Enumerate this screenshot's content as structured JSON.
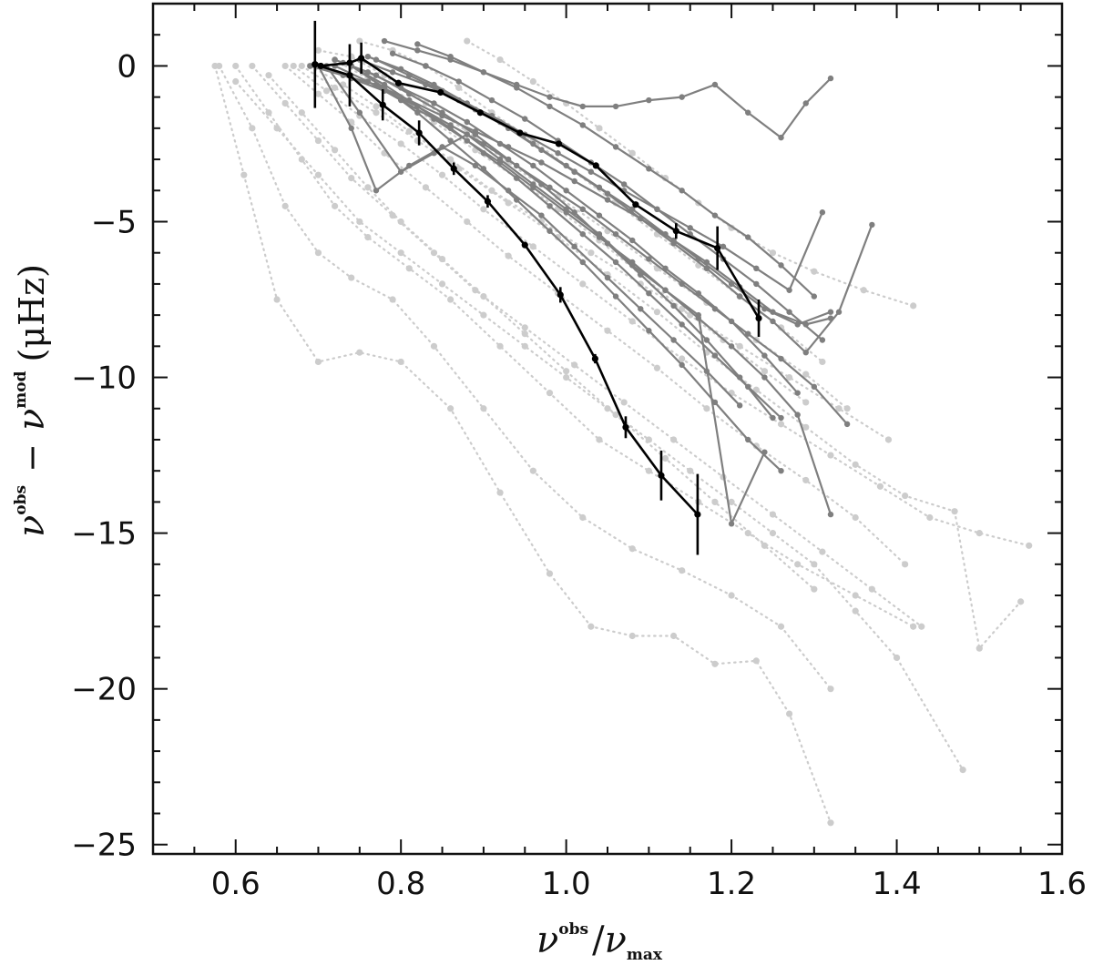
{
  "chart_data": {
    "type": "line",
    "xlabel": {
      "main": "ν",
      "sup": "obs",
      "sep": "/",
      "main2": "ν",
      "sub2": "max"
    },
    "ylabel": {
      "main": "ν",
      "sup1": "obs",
      "minus": "−",
      "main2": "ν",
      "sup2": "mod",
      "unit": "(μHz)"
    },
    "xlim": [
      0.5,
      1.6
    ],
    "ylim": [
      -25.3,
      2
    ],
    "x_ticks": [
      0.6,
      0.8,
      1.0,
      1.2,
      1.4,
      1.6
    ],
    "x_tick_labels": [
      "0.6",
      "0.8",
      "1.0",
      "1.2",
      "1.4",
      "1.6"
    ],
    "y_ticks": [
      0,
      -5,
      -10,
      -15,
      -20,
      -25
    ],
    "y_tick_labels": [
      "0",
      "−5",
      "−10",
      "−15",
      "−20",
      "−25"
    ],
    "grid": false,
    "legend": "none",
    "colors": {
      "highlight": "#000000",
      "sample": "#7f7f7f",
      "background": "#cccccc"
    },
    "background_series": [
      {
        "x": [
          0.575,
          0.61,
          0.65,
          0.7,
          0.75,
          0.8,
          0.86,
          0.92,
          0.98,
          1.03,
          1.08,
          1.13,
          1.18,
          1.23,
          1.27,
          1.32
        ],
        "y": [
          0,
          -3.5,
          -7.5,
          -9.5,
          -9.2,
          -9.5,
          -11,
          -13.7,
          -16.3,
          -18,
          -18.3,
          -18.3,
          -19.2,
          -19.1,
          -20.8,
          -24.3
        ]
      },
      {
        "x": [
          0.58,
          0.62,
          0.66,
          0.7,
          0.74,
          0.79,
          0.84,
          0.9,
          0.96,
          1.02,
          1.08,
          1.14,
          1.2,
          1.26,
          1.32
        ],
        "y": [
          0,
          -2,
          -4.5,
          -6,
          -6.8,
          -7.5,
          -9,
          -11,
          -13,
          -14.5,
          -15.5,
          -16.2,
          -17,
          -18,
          -20
        ]
      },
      {
        "x": [
          0.6,
          0.64,
          0.68,
          0.72,
          0.76,
          0.81,
          0.86,
          0.92,
          0.98,
          1.04,
          1.1,
          1.16,
          1.22,
          1.28,
          1.35,
          1.42
        ],
        "y": [
          0,
          -1.5,
          -3,
          -4.5,
          -5.5,
          -6.5,
          -7.5,
          -9,
          -10.5,
          -12,
          -13,
          -14,
          -15,
          -16,
          -17,
          -18
        ]
      },
      {
        "x": [
          0.67,
          0.71,
          0.75,
          0.8,
          0.85,
          0.9,
          0.96,
          1.02,
          1.08,
          1.14,
          1.2,
          1.26,
          1.32,
          1.38,
          1.44,
          1.5,
          1.56
        ],
        "y": [
          0,
          -0.8,
          -1.6,
          -2.5,
          -3.5,
          -4.6,
          -5.8,
          -7,
          -8.2,
          -9.4,
          -10.5,
          -11.5,
          -12.5,
          -13.5,
          -14.5,
          -15,
          -15.4
        ]
      },
      {
        "x": [
          0.68,
          0.72,
          0.77,
          0.82,
          0.87,
          0.93,
          0.99,
          1.05,
          1.11,
          1.17,
          1.23,
          1.29,
          1.35,
          1.41,
          1.47,
          1.5,
          1.55
        ],
        "y": [
          0,
          -0.7,
          -1.5,
          -2.4,
          -3.3,
          -4.4,
          -5.5,
          -6.7,
          -7.9,
          -9.2,
          -10.4,
          -11.6,
          -12.8,
          -13.8,
          -14.3,
          -18.7,
          -17.2
        ]
      },
      {
        "x": [
          0.6,
          0.65,
          0.7,
          0.75,
          0.8,
          0.85,
          0.9,
          0.95,
          1.0,
          1.05,
          1.1,
          1.15,
          1.2,
          1.25,
          1.3,
          1.35,
          1.4,
          1.48
        ],
        "y": [
          -0.5,
          -2,
          -3.5,
          -5,
          -6,
          -7,
          -8,
          -9,
          -10,
          -11,
          -12,
          -13,
          -14,
          -15,
          -16,
          -17.5,
          -19,
          -22.6
        ]
      },
      {
        "x": [
          0.75,
          0.79,
          0.83,
          0.87,
          0.91,
          0.96,
          1.01,
          1.06,
          1.11,
          1.16,
          1.21,
          1.26,
          1.31
        ],
        "y": [
          0.8,
          0.5,
          0,
          -0.7,
          -1.5,
          -2.4,
          -3.4,
          -4.4,
          -5.4,
          -6.4,
          -7.4,
          -8.4,
          -9.5
        ]
      },
      {
        "x": [
          0.7,
          0.74,
          0.78,
          0.83,
          0.88,
          0.93,
          0.99,
          1.05,
          1.11,
          1.17,
          1.23,
          1.29,
          1.34
        ],
        "y": [
          0.5,
          0.3,
          -0.3,
          -1.2,
          -2.1,
          -3.1,
          -4.2,
          -5.3,
          -6.5,
          -7.6,
          -8.8,
          -9.9,
          -11
        ]
      },
      {
        "x": [
          0.69,
          0.73,
          0.77,
          0.81,
          0.86,
          0.91,
          0.97,
          1.03,
          1.09,
          1.15,
          1.21,
          1.27,
          1.33,
          1.39
        ],
        "y": [
          0,
          -0.6,
          -1.3,
          -2.1,
          -3,
          -4,
          -5,
          -6,
          -7,
          -8,
          -9,
          -10,
          -11,
          -12
        ]
      },
      {
        "x": [
          0.66,
          0.7,
          0.74,
          0.78,
          0.83,
          0.88,
          0.93,
          0.99,
          1.05,
          1.11,
          1.17,
          1.23,
          1.29,
          1.35,
          1.41
        ],
        "y": [
          0,
          -0.9,
          -1.8,
          -2.8,
          -3.9,
          -5,
          -6.1,
          -7.3,
          -8.5,
          -9.7,
          -11,
          -12.2,
          -13.3,
          -14.5,
          -16
        ]
      },
      {
        "x": [
          0.62,
          0.66,
          0.7,
          0.74,
          0.79,
          0.84,
          0.89,
          0.95,
          1.01,
          1.07,
          1.13,
          1.19,
          1.25,
          1.31,
          1.37,
          1.43
        ],
        "y": [
          0,
          -1.2,
          -2.4,
          -3.6,
          -4.8,
          -6,
          -7.2,
          -8.4,
          -9.6,
          -10.8,
          -12,
          -13.2,
          -14.4,
          -15.6,
          -16.8,
          -18
        ]
      },
      {
        "x": [
          0.88,
          0.92,
          0.96,
          1.0,
          1.04,
          1.08,
          1.12,
          1.16,
          1.2,
          1.25,
          1.3,
          1.36,
          1.42
        ],
        "y": [
          0.8,
          0.2,
          -0.5,
          -1.2,
          -2,
          -2.8,
          -3.6,
          -4.4,
          -5.2,
          -6,
          -6.6,
          -7.2,
          -7.7
        ]
      },
      {
        "x": [
          0.72,
          0.76,
          0.8,
          0.84,
          0.89,
          0.94,
          0.99,
          1.04,
          1.09,
          1.14,
          1.19,
          1.24,
          1.29
        ],
        "y": [
          0.2,
          -0.4,
          -1,
          -1.8,
          -2.7,
          -3.6,
          -4.6,
          -5.6,
          -6.7,
          -7.8,
          -8.8,
          -9.8,
          -10.8
        ]
      },
      {
        "x": [
          0.64,
          0.68,
          0.72,
          0.76,
          0.8,
          0.85,
          0.9,
          0.95,
          1.0,
          1.06,
          1.12,
          1.18,
          1.24,
          1.3
        ],
        "y": [
          -0.3,
          -1.5,
          -2.7,
          -3.9,
          -5,
          -6.2,
          -7.4,
          -8.6,
          -9.8,
          -11.2,
          -12.6,
          -14,
          -15.4,
          -16.8
        ]
      }
    ],
    "sample_series": [
      {
        "x": [
          0.69,
          0.73,
          0.77,
          0.81,
          0.85,
          0.89,
          0.93,
          0.97,
          1.01,
          1.05,
          1.09,
          1.13,
          1.17,
          1.21,
          1.25,
          1.29,
          1.32
        ],
        "y": [
          0,
          -0.3,
          -0.6,
          -1.1,
          -1.6,
          -2.1,
          -2.6,
          -3.1,
          -3.7,
          -4.3,
          -4.9,
          -5.6,
          -6.3,
          -7.1,
          -7.9,
          -8.3,
          -8.1
        ]
      },
      {
        "x": [
          0.7,
          0.74,
          0.78,
          0.82,
          0.86,
          0.9,
          0.94,
          0.98,
          1.02,
          1.06,
          1.1,
          1.14,
          1.18,
          1.22,
          1.26,
          1.3,
          1.34
        ],
        "y": [
          0,
          -0.4,
          -0.8,
          -1.3,
          -1.9,
          -2.5,
          -3.2,
          -3.9,
          -4.6,
          -5.4,
          -6.2,
          -7,
          -7.8,
          -8.6,
          -9.4,
          -10.3,
          -11.5
        ]
      },
      {
        "x": [
          0.72,
          0.76,
          0.8,
          0.84,
          0.88,
          0.92,
          0.96,
          1.0,
          1.04,
          1.08,
          1.12,
          1.16,
          1.2,
          1.24,
          1.28,
          1.32
        ],
        "y": [
          0,
          -0.5,
          -1.1,
          -1.7,
          -2.4,
          -3.1,
          -3.9,
          -4.7,
          -5.5,
          -6.3,
          -7.2,
          -8.1,
          -9,
          -10,
          -11.2,
          -14.4
        ]
      },
      {
        "x": [
          0.75,
          0.79,
          0.83,
          0.87,
          0.91,
          0.95,
          0.99,
          1.03,
          1.07,
          1.11,
          1.15,
          1.19,
          1.23,
          1.27,
          1.31
        ],
        "y": [
          0.2,
          -0.2,
          -0.6,
          -1.1,
          -1.6,
          -2.2,
          -2.8,
          -3.4,
          -4,
          -4.6,
          -5.2,
          -5.8,
          -6.5,
          -7.2,
          -4.7
        ]
      },
      {
        "x": [
          0.78,
          0.82,
          0.86,
          0.9,
          0.94,
          0.98,
          1.02,
          1.06,
          1.1,
          1.14,
          1.18,
          1.22,
          1.26,
          1.29,
          1.32
        ],
        "y": [
          0.8,
          0.5,
          0.2,
          -0.2,
          -0.6,
          -1,
          -1.3,
          -1.3,
          -1.1,
          -1,
          -0.6,
          -1.5,
          -2.3,
          -1.2,
          -0.4
        ]
      },
      {
        "x": [
          0.74,
          0.78,
          0.82,
          0.86,
          0.9,
          0.94,
          0.98,
          1.02,
          1.06,
          1.1,
          1.14,
          1.18,
          1.22,
          1.26
        ],
        "y": [
          0,
          -0.6,
          -1.3,
          -2,
          -2.8,
          -3.6,
          -4.5,
          -5.4,
          -6.3,
          -7.3,
          -8.3,
          -9.3,
          -10.3,
          -11.3
        ]
      },
      {
        "x": [
          0.73,
          0.77,
          0.81,
          0.85,
          0.89,
          0.93,
          0.97,
          1.01,
          1.05,
          1.09,
          1.13,
          1.17,
          1.21,
          1.25
        ],
        "y": [
          0.1,
          -0.3,
          -0.9,
          -1.5,
          -2.2,
          -3,
          -3.8,
          -4.7,
          -5.7,
          -6.7,
          -7.7,
          -8.8,
          -10,
          -11.3
        ]
      },
      {
        "x": [
          0.71,
          0.75,
          0.8,
          0.84,
          0.88,
          0.92,
          0.96,
          1.0,
          1.04,
          1.08,
          1.12,
          1.16,
          1.2,
          1.24
        ],
        "y": [
          0,
          -1.5,
          -3.4,
          -2.8,
          -2.2,
          -3,
          -3.8,
          -4.6,
          -5.4,
          -6.4,
          -7.2,
          -8,
          -14.7,
          -12.4
        ]
      },
      {
        "x": [
          0.76,
          0.8,
          0.84,
          0.88,
          0.92,
          0.96,
          1.0,
          1.04,
          1.08,
          1.12,
          1.16,
          1.2,
          1.24,
          1.28,
          1.32
        ],
        "y": [
          0.3,
          -0.1,
          -0.6,
          -1.2,
          -1.8,
          -2.5,
          -3.2,
          -3.9,
          -4.6,
          -5.4,
          -6.2,
          -7,
          -7.8,
          -8.3,
          -7.9
        ]
      },
      {
        "x": [
          0.7,
          0.74,
          0.77,
          0.81,
          0.85,
          0.89,
          0.93,
          0.97,
          1.01,
          1.05,
          1.09,
          1.13,
          1.17,
          1.21
        ],
        "y": [
          0,
          -2,
          -4,
          -3.2,
          -2.6,
          -3.2,
          -4,
          -4.8,
          -5.8,
          -6.8,
          -7.8,
          -8.8,
          -9.8,
          -10.9
        ]
      },
      {
        "x": [
          0.79,
          0.83,
          0.87,
          0.91,
          0.95,
          0.99,
          1.03,
          1.07,
          1.11,
          1.15,
          1.19,
          1.23,
          1.27,
          1.31
        ],
        "y": [
          0.4,
          0,
          -0.5,
          -1.1,
          -1.7,
          -2.4,
          -3.1,
          -3.8,
          -4.6,
          -5.4,
          -6.2,
          -7,
          -7.9,
          -8.8
        ]
      },
      {
        "x": [
          0.72,
          0.76,
          0.8,
          0.84,
          0.88,
          0.92,
          0.96,
          1.0,
          1.04,
          1.08,
          1.12,
          1.16,
          1.2,
          1.24,
          1.28
        ],
        "y": [
          0.2,
          -0.2,
          -0.7,
          -1.2,
          -1.8,
          -2.5,
          -3.2,
          -4,
          -4.8,
          -5.6,
          -6.5,
          -7.3,
          -8.2,
          -9.3,
          -10.5
        ]
      },
      {
        "x": [
          0.82,
          0.86,
          0.9,
          0.94,
          0.98,
          1.02,
          1.06,
          1.1,
          1.14,
          1.18,
          1.22,
          1.26,
          1.3
        ],
        "y": [
          0.7,
          0.3,
          -0.2,
          -0.7,
          -1.3,
          -1.9,
          -2.6,
          -3.3,
          -4,
          -4.8,
          -5.5,
          -6.4,
          -7.4
        ]
      },
      {
        "x": [
          0.77,
          0.81,
          0.85,
          0.89,
          0.93,
          0.97,
          1.01,
          1.05,
          1.09,
          1.13,
          1.17,
          1.21,
          1.25,
          1.29,
          1.33,
          1.37
        ],
        "y": [
          0.2,
          -0.3,
          -0.8,
          -1.4,
          -2,
          -2.7,
          -3.4,
          -4.1,
          -4.9,
          -5.7,
          -6.5,
          -7.4,
          -8.2,
          -9.2,
          -7.9,
          -5.1
        ]
      },
      {
        "x": [
          0.74,
          0.78,
          0.82,
          0.86,
          0.9,
          0.94,
          0.98,
          1.02,
          1.06,
          1.1,
          1.14,
          1.18,
          1.22,
          1.26
        ],
        "y": [
          0,
          -0.7,
          -1.5,
          -2.4,
          -3.3,
          -4.3,
          -5.3,
          -6.3,
          -7.4,
          -8.5,
          -9.6,
          -10.8,
          -12,
          -13
        ]
      }
    ],
    "highlight_series": [
      {
        "x": [
          0.696,
          0.703,
          0.738,
          0.752,
          0.797,
          0.848,
          0.896,
          0.944,
          0.991,
          1.036,
          1.084,
          1.133,
          1.183,
          1.233
        ],
        "y": [
          0.05,
          0.0,
          0.1,
          0.25,
          -0.55,
          -0.85,
          -1.5,
          -2.15,
          -2.5,
          -3.2,
          -4.45,
          -5.3,
          -5.85,
          -8.1
        ],
        "err": [
          0,
          0,
          0,
          0.5,
          0,
          0,
          0,
          0,
          0,
          0,
          0,
          0.25,
          0.7,
          0.6
        ]
      },
      {
        "x": [
          0.696,
          0.738,
          0.778,
          0.822,
          0.864,
          0.905,
          0.95,
          0.993,
          1.035,
          1.072,
          1.115,
          1.159
        ],
        "y": [
          0.05,
          -0.3,
          -1.25,
          -2.15,
          -3.3,
          -4.35,
          -5.75,
          -7.35,
          -9.4,
          -11.6,
          -13.15,
          -14.4
        ],
        "err": [
          1.4,
          1.0,
          0.5,
          0.4,
          0.2,
          0.2,
          0,
          0.25,
          0.15,
          0.35,
          0.8,
          1.3
        ]
      }
    ]
  }
}
